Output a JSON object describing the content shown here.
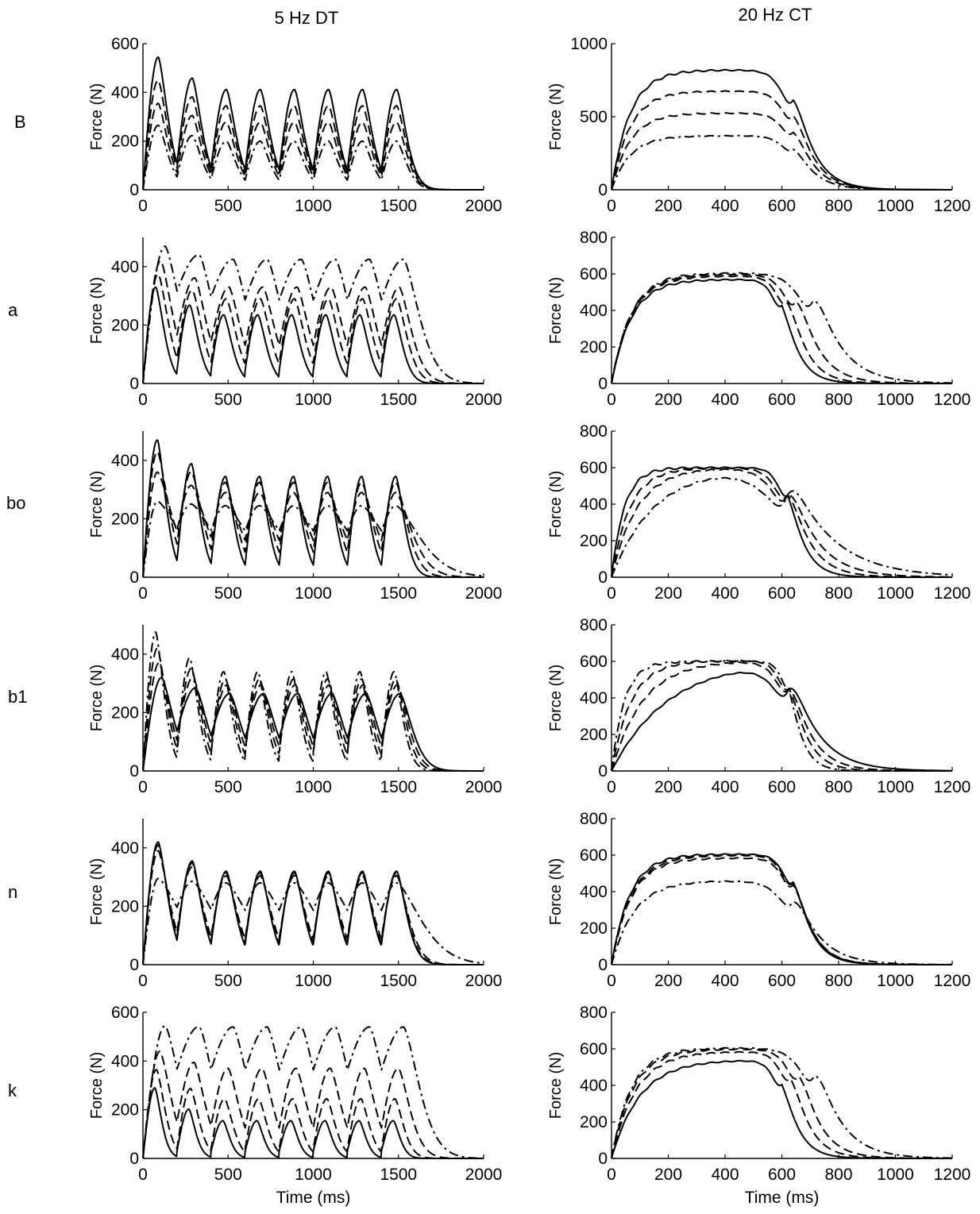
{
  "figure": {
    "column_titles": [
      "5 Hz DT",
      "20 Hz CT"
    ],
    "row_labels": [
      "B",
      "a",
      "bo",
      "b1",
      "n",
      "k"
    ],
    "ylabel": "Force (N)",
    "xlabel": "Time (ms)"
  },
  "line_styles": [
    "solid",
    "dashed",
    "dashed",
    "dash-dot"
  ],
  "chart_data": [
    {
      "type": "line",
      "row": "B",
      "column": "5 Hz DT",
      "stimulus": {
        "kind": "DT",
        "freq": 5,
        "pulses": 8
      },
      "xlim": [
        0,
        2000
      ],
      "ylim": [
        0,
        600
      ],
      "xticks": [
        0,
        500,
        1000,
        1500,
        2000
      ],
      "yticks": [
        0,
        200,
        400,
        600
      ],
      "xlabel": "",
      "ylabel": "Force (N)",
      "grid": false,
      "series": [
        {
          "style": "solid",
          "first_peak": 545,
          "peak": 412,
          "trough": 65,
          "rise_ms": 90,
          "decay_ms": 80
        },
        {
          "style": "dashed",
          "first_peak": 450,
          "peak": 345,
          "trough": 55,
          "rise_ms": 90,
          "decay_ms": 80
        },
        {
          "style": "dashed",
          "first_peak": 355,
          "peak": 278,
          "trough": 45,
          "rise_ms": 90,
          "decay_ms": 80
        },
        {
          "style": "dash-dot",
          "first_peak": 265,
          "peak": 200,
          "trough": 35,
          "rise_ms": 90,
          "decay_ms": 80
        }
      ]
    },
    {
      "type": "line",
      "row": "B",
      "column": "20 Hz CT",
      "stimulus": {
        "kind": "CT",
        "freq": 20,
        "end_ms": 640
      },
      "xlim": [
        0,
        1200
      ],
      "ylim": [
        0,
        1000
      ],
      "xticks": [
        0,
        200,
        400,
        600,
        800,
        1000,
        1200
      ],
      "yticks": [
        0,
        500,
        1000
      ],
      "xlabel": "",
      "ylabel": "Force (N)",
      "grid": false,
      "series": [
        {
          "style": "solid",
          "plateau": 820,
          "tau_rise_ms": 65,
          "tau_decay_ms": 65
        },
        {
          "style": "dashed",
          "plateau": 675,
          "tau_rise_ms": 65,
          "tau_decay_ms": 65
        },
        {
          "style": "dashed",
          "plateau": 525,
          "tau_rise_ms": 65,
          "tau_decay_ms": 65
        },
        {
          "style": "dash-dot",
          "plateau": 370,
          "tau_rise_ms": 65,
          "tau_decay_ms": 65
        }
      ]
    },
    {
      "type": "line",
      "row": "a",
      "column": "5 Hz DT",
      "stimulus": {
        "kind": "DT",
        "freq": 5,
        "pulses": 8
      },
      "xlim": [
        0,
        2000
      ],
      "ylim": [
        0,
        500
      ],
      "xticks": [
        0,
        500,
        1000,
        1500,
        2000
      ],
      "yticks": [
        0,
        200,
        400
      ],
      "xlabel": "",
      "ylabel": "Force (N)",
      "grid": false,
      "series": [
        {
          "style": "solid",
          "first_peak": 330,
          "peak": 235,
          "trough": 45,
          "rise_ms": 75,
          "decay_ms": 70
        },
        {
          "style": "dashed",
          "first_peak": 375,
          "peak": 290,
          "trough": 70,
          "rise_ms": 90,
          "decay_ms": 85
        },
        {
          "style": "dashed",
          "first_peak": 420,
          "peak": 330,
          "trough": 95,
          "rise_ms": 105,
          "decay_ms": 100
        },
        {
          "style": "dash-dot",
          "first_peak": 470,
          "peak": 425,
          "trough": 160,
          "rise_ms": 130,
          "decay_ms": 130
        }
      ]
    },
    {
      "type": "line",
      "row": "a",
      "column": "20 Hz CT",
      "stimulus": {
        "kind": "CT",
        "freq": 20
      },
      "xlim": [
        0,
        1200
      ],
      "ylim": [
        0,
        800
      ],
      "xticks": [
        0,
        200,
        400,
        600,
        800,
        1000,
        1200
      ],
      "yticks": [
        0,
        200,
        400,
        600,
        800
      ],
      "xlabel": "",
      "ylabel": "Force (N)",
      "grid": false,
      "series": [
        {
          "style": "solid",
          "plateau": 570,
          "tau_rise_ms": 70,
          "tau_decay_ms": 50,
          "end_ms": 600
        },
        {
          "style": "dashed",
          "plateau": 590,
          "tau_rise_ms": 70,
          "tau_decay_ms": 58,
          "end_ms": 620
        },
        {
          "style": "dashed",
          "plateau": 600,
          "tau_rise_ms": 70,
          "tau_decay_ms": 70,
          "end_ms": 650
        },
        {
          "style": "dash-dot",
          "plateau": 605,
          "tau_rise_ms": 70,
          "tau_decay_ms": 90,
          "end_ms": 710
        }
      ]
    },
    {
      "type": "line",
      "row": "bo",
      "column": "5 Hz DT",
      "stimulus": {
        "kind": "DT",
        "freq": 5,
        "pulses": 8
      },
      "xlim": [
        0,
        2000
      ],
      "ylim": [
        0,
        500
      ],
      "xticks": [
        0,
        500,
        1000,
        1500,
        2000
      ],
      "yticks": [
        0,
        200,
        400
      ],
      "xlabel": "",
      "ylabel": "Force (N)",
      "grid": false,
      "series": [
        {
          "style": "solid",
          "first_peak": 470,
          "peak": 345,
          "trough": 35,
          "rise_ms": 85,
          "decay_ms": 70
        },
        {
          "style": "dashed",
          "first_peak": 430,
          "peak": 325,
          "trough": 75,
          "rise_ms": 85,
          "decay_ms": 95
        },
        {
          "style": "dashed",
          "first_peak": 360,
          "peak": 290,
          "trough": 110,
          "rise_ms": 85,
          "decay_ms": 130
        },
        {
          "style": "dash-dot",
          "first_peak": 260,
          "peak": 245,
          "trough": 135,
          "rise_ms": 85,
          "decay_ms": 200
        }
      ]
    },
    {
      "type": "line",
      "row": "bo",
      "column": "20 Hz CT",
      "stimulus": {
        "kind": "CT",
        "freq": 20,
        "end_ms": 620
      },
      "xlim": [
        0,
        1200
      ],
      "ylim": [
        0,
        800
      ],
      "xticks": [
        0,
        200,
        400,
        600,
        800,
        1000,
        1200
      ],
      "yticks": [
        0,
        200,
        400,
        600,
        800
      ],
      "xlabel": "",
      "ylabel": "Force (N)",
      "grid": false,
      "series": [
        {
          "style": "solid",
          "plateau": 600,
          "tau_rise_ms": 45,
          "tau_decay_ms": 50
        },
        {
          "style": "dashed",
          "plateau": 600,
          "tau_rise_ms": 65,
          "tau_decay_ms": 70
        },
        {
          "style": "dashed",
          "plateau": 600,
          "tau_rise_ms": 90,
          "tau_decay_ms": 95
        },
        {
          "style": "dash-dot",
          "plateau": 605,
          "tau_rise_ms": 150,
          "tau_decay_ms": 150
        }
      ]
    },
    {
      "type": "line",
      "row": "b1",
      "column": "5 Hz DT",
      "stimulus": {
        "kind": "DT",
        "freq": 5,
        "pulses": 8
      },
      "xlim": [
        0,
        2000
      ],
      "ylim": [
        0,
        500
      ],
      "xticks": [
        0,
        500,
        1000,
        1500,
        2000
      ],
      "yticks": [
        0,
        200,
        400
      ],
      "xlabel": "",
      "ylabel": "Force (N)",
      "grid": false,
      "series": [
        {
          "style": "solid",
          "first_peak": 320,
          "peak": 265,
          "trough": 90,
          "rise_ms": 110,
          "decay_ms": 100
        },
        {
          "style": "dashed",
          "first_peak": 370,
          "peak": 295,
          "trough": 75,
          "rise_ms": 95,
          "decay_ms": 90
        },
        {
          "style": "dashed",
          "first_peak": 420,
          "peak": 315,
          "trough": 65,
          "rise_ms": 85,
          "decay_ms": 80
        },
        {
          "style": "dash-dot",
          "first_peak": 475,
          "peak": 340,
          "trough": 55,
          "rise_ms": 75,
          "decay_ms": 70
        }
      ]
    },
    {
      "type": "line",
      "row": "b1",
      "column": "20 Hz CT",
      "stimulus": {
        "kind": "CT",
        "freq": 20,
        "end_ms": 625
      },
      "xlim": [
        0,
        1200
      ],
      "ylim": [
        0,
        800
      ],
      "xticks": [
        0,
        200,
        400,
        600,
        800,
        1000,
        1200
      ],
      "yticks": [
        0,
        200,
        400,
        600,
        800
      ],
      "xlabel": "",
      "ylabel": "Force (N)",
      "grid": false,
      "series": [
        {
          "style": "solid",
          "plateau": 610,
          "tau_rise_ms": 200,
          "tau_decay_ms": 95
        },
        {
          "style": "dashed",
          "plateau": 605,
          "tau_rise_ms": 110,
          "tau_decay_ms": 70
        },
        {
          "style": "dashed",
          "plateau": 605,
          "tau_rise_ms": 70,
          "tau_decay_ms": 55
        },
        {
          "style": "dash-dot",
          "plateau": 600,
          "tau_rise_ms": 45,
          "tau_decay_ms": 40
        }
      ]
    },
    {
      "type": "line",
      "row": "n",
      "column": "5 Hz DT",
      "stimulus": {
        "kind": "DT",
        "freq": 5,
        "pulses": 8
      },
      "xlim": [
        0,
        2000
      ],
      "ylim": [
        0,
        500
      ],
      "xticks": [
        0,
        500,
        1000,
        1500,
        2000
      ],
      "yticks": [
        0,
        200,
        400
      ],
      "xlabel": "",
      "ylabel": "Force (N)",
      "grid": false,
      "series": [
        {
          "style": "solid",
          "first_peak": 420,
          "peak": 320,
          "trough": 70,
          "rise_ms": 90,
          "decay_ms": 80
        },
        {
          "style": "dashed",
          "first_peak": 410,
          "peak": 315,
          "trough": 80,
          "rise_ms": 90,
          "decay_ms": 85
        },
        {
          "style": "dashed",
          "first_peak": 390,
          "peak": 305,
          "trough": 90,
          "rise_ms": 90,
          "decay_ms": 95
        },
        {
          "style": "dash-dot",
          "first_peak": 295,
          "peak": 280,
          "trough": 165,
          "rise_ms": 90,
          "decay_ms": 200
        }
      ]
    },
    {
      "type": "line",
      "row": "n",
      "column": "20 Hz CT",
      "stimulus": {
        "kind": "CT",
        "freq": 20,
        "end_ms": 640
      },
      "xlim": [
        0,
        1200
      ],
      "ylim": [
        0,
        800
      ],
      "xticks": [
        0,
        200,
        400,
        600,
        800,
        1000,
        1200
      ],
      "yticks": [
        0,
        200,
        400,
        600,
        800
      ],
      "xlabel": "",
      "ylabel": "Force (N)",
      "grid": false,
      "series": [
        {
          "style": "solid",
          "plateau": 605,
          "tau_rise_ms": 65,
          "tau_decay_ms": 55
        },
        {
          "style": "dashed",
          "plateau": 600,
          "tau_rise_ms": 70,
          "tau_decay_ms": 58
        },
        {
          "style": "dashed",
          "plateau": 585,
          "tau_rise_ms": 70,
          "tau_decay_ms": 60
        },
        {
          "style": "dash-dot",
          "plateau": 460,
          "tau_rise_ms": 80,
          "tau_decay_ms": 85
        }
      ]
    },
    {
      "type": "line",
      "row": "k",
      "column": "5 Hz DT",
      "stimulus": {
        "kind": "DT",
        "freq": 5,
        "pulses": 8
      },
      "xlim": [
        0,
        2000
      ],
      "ylim": [
        0,
        600
      ],
      "xticks": [
        0,
        500,
        1000,
        1500,
        2000
      ],
      "yticks": [
        0,
        200,
        400,
        600
      ],
      "xlabel": "Time (ms)",
      "ylabel": "Force (N)",
      "grid": false,
      "series": [
        {
          "style": "solid",
          "first_peak": 290,
          "peak": 155,
          "trough": 30,
          "rise_ms": 70,
          "decay_ms": 55
        },
        {
          "style": "dashed",
          "first_peak": 365,
          "peak": 245,
          "trough": 40,
          "rise_ms": 80,
          "decay_ms": 70
        },
        {
          "style": "dashed",
          "first_peak": 440,
          "peak": 370,
          "trough": 80,
          "rise_ms": 100,
          "decay_ms": 95
        },
        {
          "style": "dash-dot",
          "first_peak": 545,
          "peak": 540,
          "trough": 350,
          "rise_ms": 130,
          "decay_ms": 130
        }
      ]
    },
    {
      "type": "line",
      "row": "k",
      "column": "20 Hz CT",
      "stimulus": {
        "kind": "CT",
        "freq": 20
      },
      "xlim": [
        0,
        1200
      ],
      "ylim": [
        0,
        800
      ],
      "xticks": [
        0,
        200,
        400,
        600,
        800,
        1000,
        1200
      ],
      "yticks": [
        0,
        200,
        400,
        600,
        800
      ],
      "xlabel": "Time (ms)",
      "ylabel": "Force (N)",
      "grid": false,
      "series": [
        {
          "style": "solid",
          "plateau": 540,
          "tau_rise_ms": 100,
          "tau_decay_ms": 50,
          "end_ms": 600
        },
        {
          "style": "dashed",
          "plateau": 585,
          "tau_rise_ms": 85,
          "tau_decay_ms": 58,
          "end_ms": 630
        },
        {
          "style": "dashed",
          "plateau": 600,
          "tau_rise_ms": 75,
          "tau_decay_ms": 65,
          "end_ms": 660
        },
        {
          "style": "dash-dot",
          "plateau": 605,
          "tau_rise_ms": 70,
          "tau_decay_ms": 85,
          "end_ms": 715
        }
      ]
    }
  ]
}
